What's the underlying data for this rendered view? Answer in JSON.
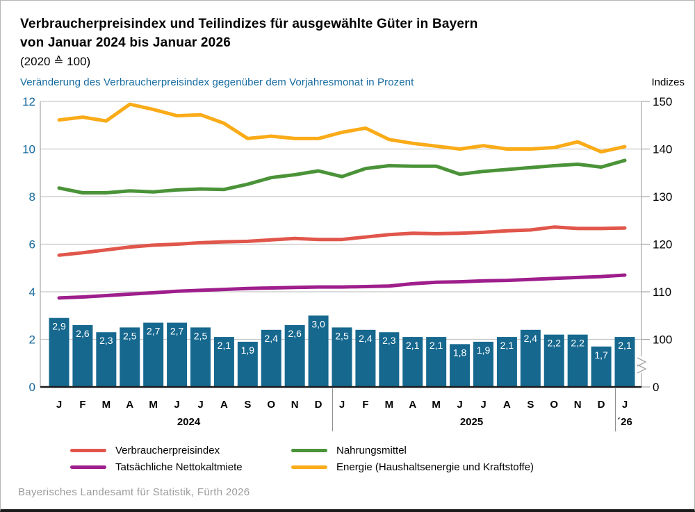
{
  "header": {
    "title_line1": "Verbraucherpreisindex und Teilindizes für ausgewählte Güter in Bayern",
    "title_line2": "von Januar 2024 bis Januar 2026",
    "title_line3": "(2020 ≙ 100)",
    "left_axis_caption": "Veränderung des Verbraucherpreisindex gegenüber dem Vorjahresmonat in Prozent",
    "right_axis_caption": "Indizes"
  },
  "footer": {
    "source": "Bayerisches Landesamt für Statistik, Fürth 2026"
  },
  "colors": {
    "bar_blue": "#16688f",
    "grid": "#c7c7c7",
    "axis_line": "#a6a6a6",
    "baseline_black": "#1a1a1a",
    "left_tick_blue": "#16699e",
    "right_tick_black": "#000000",
    "separator_gray": "#8a8a8a",
    "bar_label_white": "#ffffff"
  },
  "chart_data": {
    "type": "bar+line combo (bars on left percent axis, lines on right index axis)",
    "months": [
      "J",
      "F",
      "M",
      "A",
      "M",
      "J",
      "J",
      "A",
      "S",
      "O",
      "N",
      "D",
      "J",
      "F",
      "M",
      "A",
      "M",
      "J",
      "J",
      "A",
      "S",
      "O",
      "N",
      "D",
      "J"
    ],
    "year_groups": [
      {
        "label": "2024",
        "from": 0,
        "to": 11
      },
      {
        "label": "2025",
        "from": 12,
        "to": 23
      },
      {
        "label": "´26",
        "from": 24,
        "to": 24
      }
    ],
    "left_axis": {
      "label": "Veränderung des Verbraucherpreisindex gegenüber dem Vorjahresmonat in Prozent",
      "ticks": [
        0,
        2,
        4,
        6,
        8,
        10,
        12
      ],
      "range": [
        0,
        12
      ]
    },
    "right_axis": {
      "label": "Indizes",
      "ticks": [
        0,
        100,
        110,
        120,
        130,
        140,
        150
      ],
      "range_upper": [
        100,
        150
      ],
      "axis_break_between": [
        0,
        100
      ]
    },
    "bars": {
      "name": "Veränderung des Verbraucherpreisindex gegenüber dem Vorjahresmonat in Prozent",
      "values": [
        2.9,
        2.6,
        2.3,
        2.5,
        2.7,
        2.7,
        2.5,
        2.1,
        1.9,
        2.4,
        2.6,
        3.0,
        2.5,
        2.4,
        2.3,
        2.1,
        2.1,
        1.8,
        1.9,
        2.1,
        2.4,
        2.2,
        2.2,
        1.7,
        2.1
      ],
      "labels": [
        "2,9",
        "2,6",
        "2,3",
        "2,5",
        "2,7",
        "2,7",
        "2,5",
        "2,1",
        "1,9",
        "2,4",
        "2,6",
        "3,0",
        "2,5",
        "2,4",
        "2,3",
        "2,1",
        "2,1",
        "1,8",
        "1,9",
        "2,1",
        "2,4",
        "2,2",
        "2,2",
        "1,7",
        "2,1"
      ]
    },
    "series": [
      {
        "name": "Verbraucherpreisindex",
        "color": "#e1564b",
        "axis": "right",
        "values": [
          117.7,
          118.2,
          118.8,
          119.4,
          119.8,
          120.0,
          120.3,
          120.5,
          120.6,
          120.9,
          121.2,
          121.0,
          121.0,
          121.5,
          122.0,
          122.3,
          122.2,
          122.3,
          122.5,
          122.8,
          123.0,
          123.6,
          123.3,
          123.3,
          123.4
        ]
      },
      {
        "name": "Nahrungsmittel",
        "color": "#4b9339",
        "axis": "right",
        "values": [
          131.8,
          130.8,
          130.8,
          131.2,
          131.0,
          131.4,
          131.6,
          131.5,
          132.6,
          134.0,
          134.6,
          135.4,
          134.2,
          135.9,
          136.5,
          136.4,
          136.4,
          134.7,
          135.3,
          135.7,
          136.1,
          136.5,
          136.8,
          136.2,
          137.6
        ]
      },
      {
        "name": "Tatsächliche Nettokaltmiete",
        "color": "#9e1e8c",
        "axis": "right",
        "values": [
          108.7,
          108.9,
          109.2,
          109.5,
          109.8,
          110.1,
          110.3,
          110.5,
          110.7,
          110.8,
          110.9,
          111.0,
          111.0,
          111.1,
          111.2,
          111.7,
          112.0,
          112.1,
          112.3,
          112.4,
          112.6,
          112.8,
          113.0,
          113.2,
          113.5
        ]
      },
      {
        "name": "Energie (Haushaltsenergie und Kraftstoffe)",
        "color": "#faab18",
        "axis": "right",
        "values": [
          146.1,
          146.7,
          145.9,
          149.4,
          148.3,
          147.0,
          147.2,
          145.4,
          142.2,
          142.7,
          142.2,
          142.2,
          143.5,
          144.4,
          142.0,
          141.2,
          140.6,
          140.0,
          140.7,
          140.0,
          140.0,
          140.3,
          141.5,
          139.4,
          140.5
        ]
      }
    ]
  }
}
